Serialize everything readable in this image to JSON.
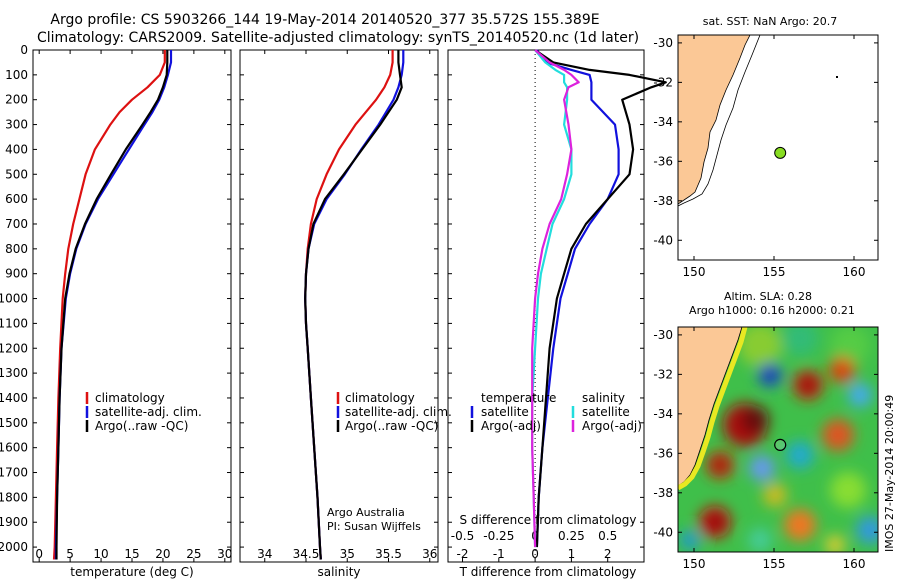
{
  "title": {
    "line1": "Argo profile: CS 5903266_144 19-May-2014 20140520_377 35.572S 155.389E",
    "line2": "Climatology: CARS2009. Satellite-adjusted climatology: synTS_20140520.nc (1d later)"
  },
  "depth_ticks": [
    "0",
    "100",
    "200",
    "300",
    "400",
    "500",
    "600",
    "700",
    "800",
    "900",
    "1000",
    "1100",
    "1200",
    "1300",
    "1400",
    "1500",
    "1600",
    "1700",
    "1800",
    "1900",
    "2000"
  ],
  "panels": {
    "temperature": {
      "xlabel": "temperature (deg C)",
      "xticks": [
        "0",
        "5",
        "10",
        "15",
        "20",
        "25",
        "30"
      ],
      "legend": [
        "climatology",
        "satellite-adj. clim.",
        "Argo(..raw -QC)"
      ]
    },
    "salinity": {
      "xlabel": "salinity",
      "xticks": [
        "34",
        "34.5",
        "35",
        "35.5",
        "36"
      ],
      "legend": [
        "climatology",
        "satellite-adj. clim.",
        "Argo(..raw -QC)"
      ],
      "note1": "Argo Australia",
      "note2": "PI: Susan Wijffels"
    },
    "difference": {
      "xlabel": "T difference from climatology",
      "top_label": "S difference from climatology",
      "s_ticks": [
        "-0.5",
        "-0.25",
        "0",
        "0.25",
        "0.5"
      ],
      "t_ticks": [
        "-2",
        "-1",
        "0",
        "1",
        "2"
      ],
      "legend_head_t": "temperature",
      "legend_head_s": "salinity",
      "legend_t": [
        "satellite",
        "Argo(-adj)"
      ],
      "legend_s": [
        "satellite",
        "Argo(-adj)"
      ]
    },
    "map_sst": {
      "title": "sat. SST: NaN Argo: 20.7",
      "xticks": [
        "150",
        "155",
        "160"
      ],
      "yticks": [
        "-30",
        "-32",
        "-34",
        "-36",
        "-38",
        "-40"
      ]
    },
    "map_sla": {
      "title1": "Altim. SLA: 0.28",
      "title2": "Argo h1000: 0.16 h2000: 0.21",
      "xticks": [
        "150",
        "155",
        "160"
      ],
      "yticks": [
        "-30",
        "-32",
        "-34",
        "-36",
        "-38",
        "-40"
      ],
      "side_text": "IMOS 27-May-2014 20:00:49"
    }
  },
  "colors": {
    "climatology": "#dd1111",
    "satellite_adj": "#1111dd",
    "argo": "#000000",
    "salinity_sat": "#22dddd",
    "salinity_argo": "#dd22dd",
    "land": "#fbc896",
    "float_marker": "#88dd22"
  },
  "chart_data": [
    {
      "type": "line",
      "panel": "temperature",
      "xlabel": "temperature (deg C)",
      "ylabel": "",
      "xlim": [
        -1,
        31
      ],
      "ylim": [
        2060,
        0
      ],
      "depth": [
        0,
        50,
        100,
        150,
        200,
        250,
        300,
        400,
        500,
        600,
        700,
        800,
        900,
        1000,
        1200,
        1400,
        1600,
        1800,
        2000,
        2050
      ],
      "series": [
        {
          "name": "climatology",
          "values": [
            20.3,
            20.3,
            19.5,
            17.5,
            15.0,
            13.0,
            11.5,
            9.0,
            7.5,
            6.5,
            5.5,
            4.7,
            4.2,
            3.8,
            3.4,
            3.1,
            2.9,
            2.7,
            2.5,
            2.4
          ]
        },
        {
          "name": "satellite-adj. clim.",
          "values": [
            21.3,
            21.3,
            20.8,
            20.2,
            19.4,
            18.3,
            17.0,
            14.5,
            12.0,
            9.5,
            7.5,
            6.0,
            5.0,
            4.3,
            3.6,
            3.3,
            3.1,
            2.9,
            2.7,
            2.7
          ]
        },
        {
          "name": "Argo(..raw -QC)",
          "values": [
            20.7,
            20.7,
            20.6,
            20.0,
            19.2,
            18.0,
            16.7,
            14.0,
            11.6,
            9.3,
            7.4,
            5.9,
            4.9,
            4.2,
            3.6,
            3.3,
            3.1,
            2.9,
            2.8,
            2.8
          ]
        }
      ]
    },
    {
      "type": "line",
      "panel": "salinity",
      "xlabel": "salinity",
      "ylabel": "",
      "xlim": [
        33.7,
        36.1
      ],
      "ylim": [
        2060,
        0
      ],
      "depth": [
        0,
        50,
        100,
        150,
        200,
        300,
        400,
        500,
        600,
        700,
        800,
        900,
        1000,
        1100,
        1200,
        1400,
        1600,
        1800,
        2000,
        2050
      ],
      "series": [
        {
          "name": "climatology",
          "values": [
            35.55,
            35.55,
            35.52,
            35.45,
            35.35,
            35.1,
            34.9,
            34.75,
            34.63,
            34.56,
            34.52,
            34.5,
            34.49,
            34.5,
            34.52,
            34.56,
            34.6,
            34.64,
            34.67,
            34.68
          ]
        },
        {
          "name": "satellite-adj. clim.",
          "values": [
            35.68,
            35.68,
            35.66,
            35.62,
            35.56,
            35.38,
            35.17,
            34.97,
            34.75,
            34.6,
            34.53,
            34.5,
            34.49,
            34.5,
            34.52,
            34.56,
            34.6,
            34.64,
            34.67,
            34.68
          ]
        },
        {
          "name": "Argo(..raw -QC)",
          "values": [
            35.62,
            35.62,
            35.64,
            35.66,
            35.6,
            35.4,
            35.18,
            34.96,
            34.73,
            34.59,
            34.53,
            34.5,
            34.49,
            34.5,
            34.52,
            34.56,
            34.6,
            34.64,
            34.67,
            34.68
          ]
        }
      ]
    },
    {
      "type": "line",
      "panel": "difference",
      "xlabel": "T difference from climatology",
      "ylabel": "",
      "xlim": [
        -2.4,
        3.0
      ],
      "s_axis_lim": [
        -0.6,
        0.75
      ],
      "ylim": [
        2060,
        0
      ],
      "depth": [
        0,
        50,
        80,
        100,
        130,
        150,
        200,
        300,
        400,
        500,
        600,
        700,
        800,
        900,
        1000,
        1200,
        1400,
        1600,
        1800,
        2000
      ],
      "series": [
        {
          "name": "temperature satellite",
          "axis": "T",
          "values": [
            0.05,
            0.3,
            1.0,
            1.5,
            1.55,
            1.55,
            1.55,
            2.2,
            2.3,
            2.3,
            2.0,
            1.5,
            1.1,
            0.9,
            0.7,
            0.5,
            0.35,
            0.2,
            0.1,
            0.05
          ]
        },
        {
          "name": "temperature Argo(-adj)",
          "values": [
            0.0,
            0.5,
            1.5,
            2.6,
            3.6,
            3.2,
            2.4,
            2.6,
            2.7,
            2.6,
            2.0,
            1.4,
            1.0,
            0.8,
            0.6,
            0.4,
            0.3,
            0.2,
            0.1,
            0.05
          ],
          "axis": "T"
        },
        {
          "name": "salinity satellite",
          "axis": "S",
          "values": [
            0.0,
            0.07,
            0.14,
            0.2,
            0.2,
            0.22,
            0.22,
            0.2,
            0.25,
            0.25,
            0.2,
            0.12,
            0.08,
            0.04,
            0.02,
            0.0,
            -0.02,
            -0.02,
            -0.01,
            0.0
          ]
        },
        {
          "name": "salinity Argo(-adj)",
          "axis": "S",
          "values": [
            0.0,
            0.1,
            0.2,
            0.25,
            0.3,
            0.23,
            0.2,
            0.23,
            0.25,
            0.22,
            0.18,
            0.1,
            0.05,
            0.02,
            0.0,
            -0.02,
            -0.02,
            -0.02,
            -0.01,
            0.0
          ]
        }
      ]
    },
    {
      "type": "scatter",
      "panel": "map_sst",
      "xlim": [
        149,
        161.5
      ],
      "ylim": [
        -41,
        -29.6
      ],
      "points": [
        {
          "x": 155.389,
          "y": -35.572
        }
      ]
    },
    {
      "type": "heatmap",
      "panel": "map_sla",
      "xlim": [
        149,
        161.5
      ],
      "ylim": [
        -41,
        -29.6
      ],
      "points": [
        {
          "x": 155.389,
          "y": -35.572
        }
      ]
    }
  ]
}
